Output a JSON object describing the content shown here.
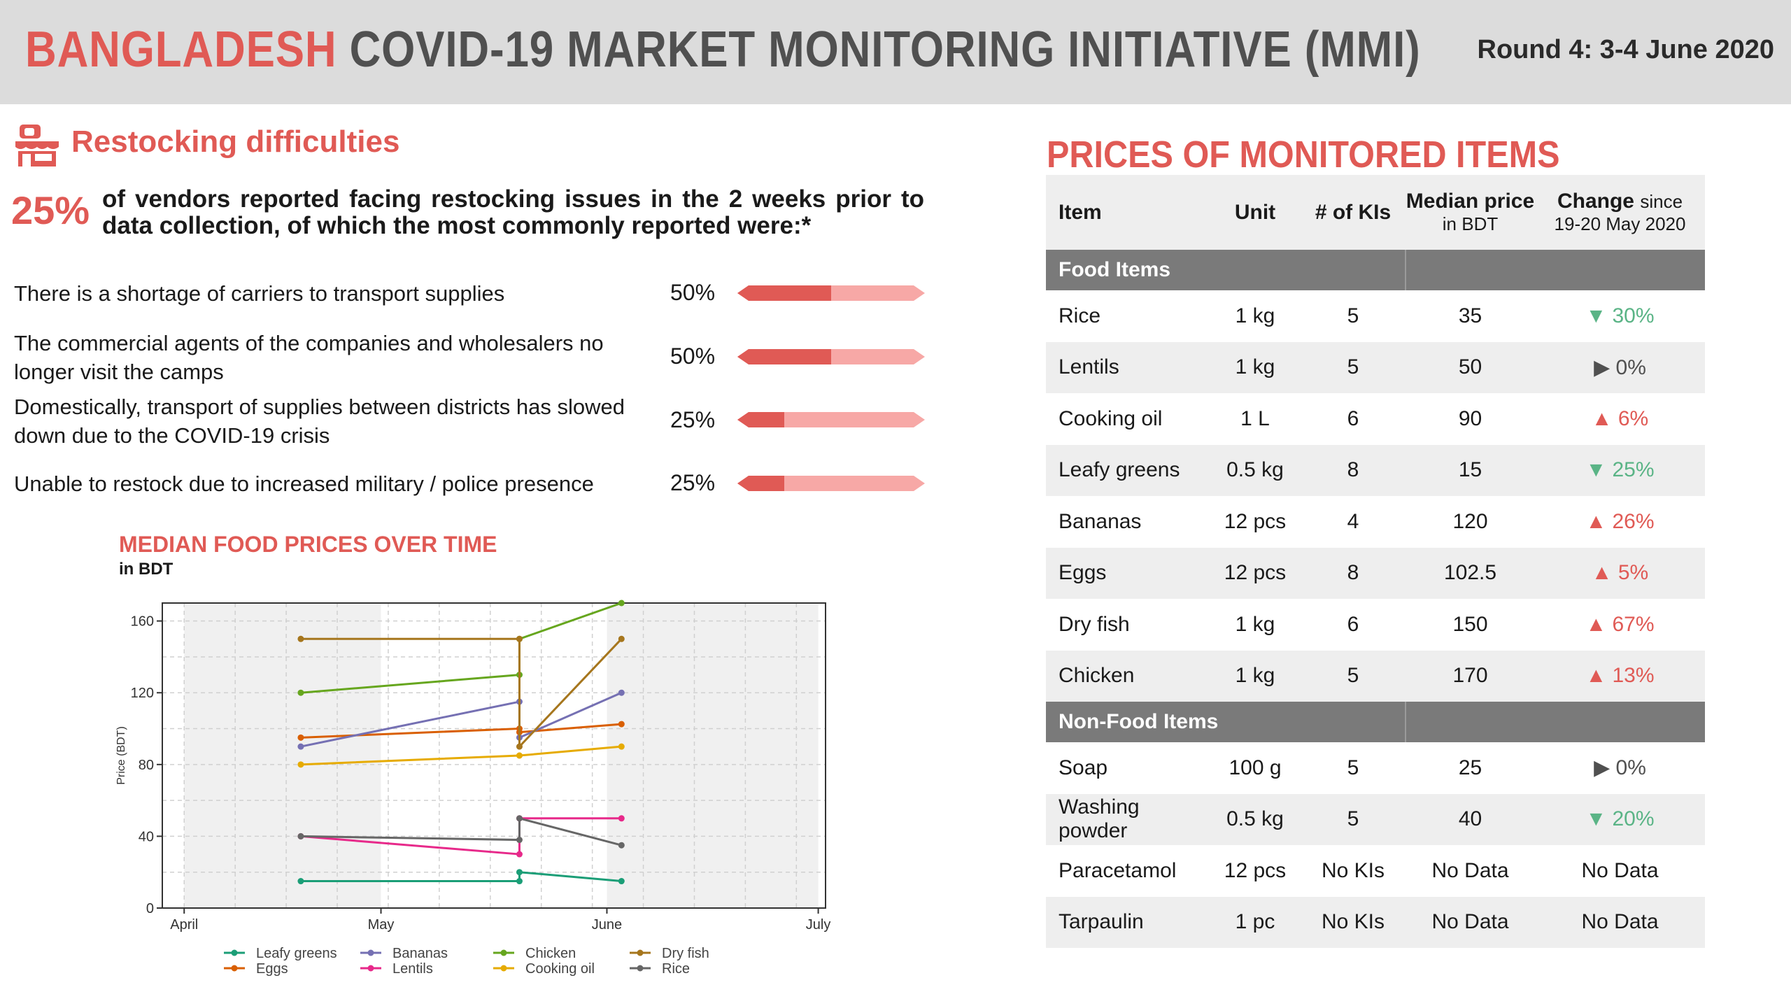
{
  "header": {
    "title_country": "BANGLADESH",
    "title_rest": "COVID-19 MARKET MONITORING INITIATIVE (MMI)",
    "round": "Round 4: 3-4 June 2020"
  },
  "restocking": {
    "icon": "store-icon",
    "title": "Restocking difficulties",
    "percent": "25%",
    "lead": "of vendors reported facing restocking issues in the 2 weeks prior to data collection, of which the most commonly reported were:*",
    "reasons": [
      {
        "text": "There is a shortage of carriers to transport supplies",
        "percent": "50%",
        "share": 0.5
      },
      {
        "text": "The commercial agents of the companies and wholesalers no longer visit the camps",
        "percent": "50%",
        "share": 0.5
      },
      {
        "text": "Domestically, transport of supplies between districts has slowed down due to the COVID-19 crisis",
        "percent": "25%",
        "share": 0.25
      },
      {
        "text": "Unable to restock due to increased military / police presence",
        "percent": "25%",
        "share": 0.25
      }
    ]
  },
  "chart_data": {
    "type": "line",
    "title": "MEDIAN FOOD PRICES OVER TIME",
    "subtitle": "in BDT",
    "ylabel": "Price (BDT)",
    "xlabel": "",
    "x_ticks": [
      "April",
      "May",
      "June",
      "July"
    ],
    "x": [
      "2020-04-20",
      "2020-05-20",
      "2020-06-03"
    ],
    "ylim": [
      0,
      170
    ],
    "y_ticks": [
      0,
      40,
      80,
      120,
      160
    ],
    "grid": true,
    "legend_position": "bottom",
    "series": [
      {
        "name": "Leafy greens",
        "color": "#1b9e77",
        "points": [
          [
            "2020-04-20",
            15
          ],
          [
            "2020-05-20",
            15
          ],
          [
            "2020-05-20",
            20
          ],
          [
            "2020-06-03",
            15
          ]
        ]
      },
      {
        "name": "Eggs",
        "color": "#d95f02",
        "points": [
          [
            "2020-04-20",
            95
          ],
          [
            "2020-05-20",
            100
          ],
          [
            "2020-05-20",
            98
          ],
          [
            "2020-06-03",
            102.5
          ]
        ]
      },
      {
        "name": "Bananas",
        "color": "#7570b3",
        "points": [
          [
            "2020-04-20",
            90
          ],
          [
            "2020-05-20",
            115
          ],
          [
            "2020-05-20",
            95
          ],
          [
            "2020-06-03",
            120
          ]
        ]
      },
      {
        "name": "Lentils",
        "color": "#e7298a",
        "points": [
          [
            "2020-04-20",
            40
          ],
          [
            "2020-05-20",
            30
          ],
          [
            "2020-05-20",
            50
          ],
          [
            "2020-06-03",
            50
          ]
        ]
      },
      {
        "name": "Chicken",
        "color": "#66a61e",
        "points": [
          [
            "2020-04-20",
            120
          ],
          [
            "2020-05-20",
            130
          ],
          [
            "2020-05-20",
            150
          ],
          [
            "2020-06-03",
            170
          ]
        ]
      },
      {
        "name": "Cooking oil",
        "color": "#e6ab02",
        "points": [
          [
            "2020-04-20",
            80
          ],
          [
            "2020-05-20",
            85
          ],
          [
            "2020-05-20",
            85
          ],
          [
            "2020-06-03",
            90
          ]
        ]
      },
      {
        "name": "Dry fish",
        "color": "#a6761d",
        "points": [
          [
            "2020-04-20",
            150
          ],
          [
            "2020-05-20",
            150
          ],
          [
            "2020-05-20",
            90
          ],
          [
            "2020-06-03",
            150
          ]
        ]
      },
      {
        "name": "Rice",
        "color": "#666666",
        "points": [
          [
            "2020-04-20",
            40
          ],
          [
            "2020-05-20",
            38
          ],
          [
            "2020-05-20",
            50
          ],
          [
            "2020-06-03",
            35
          ]
        ]
      }
    ]
  },
  "prices": {
    "title": "PRICES OF MONITORED ITEMS",
    "headers": {
      "item": "Item",
      "unit": "Unit",
      "kis": "# of KIs",
      "median": "Median price",
      "median_sub": "in BDT",
      "change": "Change",
      "change_since": "since",
      "change_sub": "19-20 May 2020"
    },
    "food_label": "Food Items",
    "nonfood_label": "Non-Food Items",
    "food": [
      {
        "item": "Rice",
        "unit": "1 kg",
        "kis": "5",
        "median": "35",
        "dir": "down",
        "change": "30%"
      },
      {
        "item": "Lentils",
        "unit": "1 kg",
        "kis": "5",
        "median": "50",
        "dir": "flat",
        "change": "0%"
      },
      {
        "item": "Cooking oil",
        "unit": "1 L",
        "kis": "6",
        "median": "90",
        "dir": "up",
        "change": "6%"
      },
      {
        "item": "Leafy greens",
        "unit": "0.5 kg",
        "kis": "8",
        "median": "15",
        "dir": "down",
        "change": "25%"
      },
      {
        "item": "Bananas",
        "unit": "12 pcs",
        "kis": "4",
        "median": "120",
        "dir": "up",
        "change": "26%"
      },
      {
        "item": "Eggs",
        "unit": "12 pcs",
        "kis": "8",
        "median": "102.5",
        "dir": "up",
        "change": "5%"
      },
      {
        "item": "Dry fish",
        "unit": "1 kg",
        "kis": "6",
        "median": "150",
        "dir": "up",
        "change": "67%"
      },
      {
        "item": "Chicken",
        "unit": "1 kg",
        "kis": "5",
        "median": "170",
        "dir": "up",
        "change": "13%"
      }
    ],
    "nonfood": [
      {
        "item": "Soap",
        "unit": "100 g",
        "kis": "5",
        "median": "25",
        "dir": "flat",
        "change": "0%"
      },
      {
        "item": "Washing powder",
        "unit": "0.5 kg",
        "kis": "5",
        "median": "40",
        "dir": "down",
        "change": "20%"
      },
      {
        "item": "Paracetamol",
        "unit": "12 pcs",
        "kis": "No KIs",
        "median": "No Data",
        "dir": "none",
        "change": "No Data"
      },
      {
        "item": "Tarpaulin",
        "unit": "1 pc",
        "kis": "No KIs",
        "median": "No Data",
        "dir": "none",
        "change": "No Data"
      }
    ],
    "colors": {
      "down": "#5ab486",
      "up": "#e05a55",
      "flat": "#505050"
    }
  }
}
